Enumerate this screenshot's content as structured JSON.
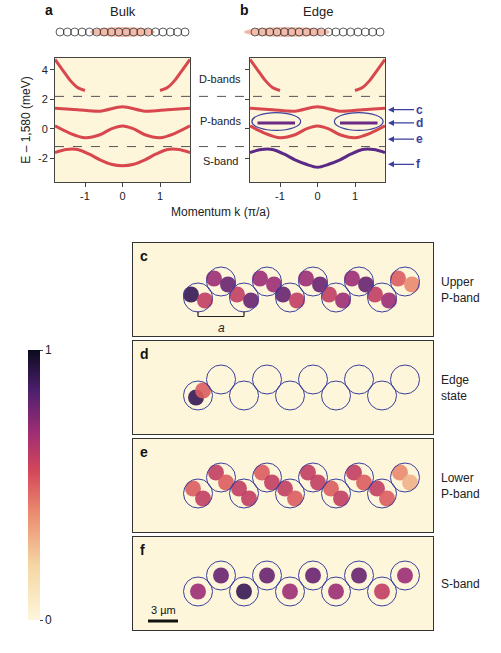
{
  "chart_data": [
    {
      "panel": "a",
      "type": "line",
      "title": "Bulk",
      "x_label": "Momentum k (π/a)",
      "y_label": "E – 1,580 (meV)",
      "xlim": [
        -1.8,
        1.8
      ],
      "ylim": [
        -3.6,
        4.8
      ],
      "xticks": [
        -1,
        0,
        1
      ],
      "yticks": [
        -2,
        0,
        2,
        4
      ],
      "dividers": [
        2.2,
        -1.2
      ],
      "band_labels": [
        {
          "text": "D-bands",
          "y": 3.4
        },
        {
          "text": "P-bands",
          "y": 0.5
        },
        {
          "text": "S-band",
          "y": -2.2
        }
      ],
      "series": [
        {
          "color": "#d8474d",
          "x": [
            -1.8,
            -1.6,
            -1.4,
            -1.2,
            -1.0,
            0,
            1.0,
            1.2,
            1.4,
            1.6,
            1.8
          ],
          "values": [
            4.7,
            4.0,
            3.3,
            2.8,
            2.6,
            null,
            2.6,
            2.8,
            3.3,
            4.0,
            4.7
          ]
        },
        {
          "color": "#d8474d",
          "x": [
            -1.8,
            -1.2,
            -0.6,
            0,
            0.6,
            1.2,
            1.8
          ],
          "values": [
            1.4,
            1.3,
            1.2,
            1.5,
            1.2,
            1.3,
            1.4
          ]
        },
        {
          "color": "#d8474d",
          "x": [
            -1.8,
            -1.4,
            -1.0,
            -0.6,
            -0.3,
            0,
            0.3,
            0.6,
            1.0,
            1.4,
            1.8
          ],
          "values": [
            0.2,
            -0.3,
            -0.6,
            -0.4,
            0.0,
            0.2,
            0.0,
            -0.4,
            -0.6,
            -0.3,
            0.2
          ]
        },
        {
          "color": "#d8474d",
          "x": [
            -1.8,
            -1.5,
            -1.2,
            -0.9,
            -0.6,
            -0.3,
            0,
            0.3,
            0.6,
            0.9,
            1.2,
            1.5,
            1.8
          ],
          "values": [
            -1.6,
            -1.4,
            -1.4,
            -1.7,
            -2.1,
            -2.4,
            -2.5,
            -2.4,
            -2.1,
            -1.7,
            -1.4,
            -1.4,
            -1.6
          ]
        }
      ]
    },
    {
      "panel": "b",
      "type": "line",
      "title": "Edge",
      "xlim": [
        -1.8,
        1.8
      ],
      "ylim": [
        -3.6,
        4.8
      ],
      "xticks": [
        -1,
        0,
        1
      ],
      "yticks": [
        -2,
        0,
        2,
        4
      ],
      "tick_labels": "x",
      "arrows": [
        {
          "label": "c",
          "y": 1.3
        },
        {
          "label": "d",
          "y": 0.4
        },
        {
          "label": "e",
          "y": -0.7
        },
        {
          "label": "f",
          "y": -2.4
        }
      ],
      "highlights": [
        {
          "x": [
            -1.75,
            -0.45
          ],
          "y": [
            -0.1,
            1.1
          ]
        },
        {
          "x": [
            0.45,
            1.75
          ],
          "y": [
            -0.1,
            1.1
          ]
        }
      ],
      "series": [
        {
          "color": "#d8474d",
          "x": [
            -1.8,
            -1.6,
            -1.4,
            -1.2,
            -1.0,
            0,
            1.0,
            1.2,
            1.4,
            1.6,
            1.8
          ],
          "values": [
            4.7,
            4.0,
            3.3,
            2.8,
            2.6,
            null,
            2.6,
            2.8,
            3.3,
            4.0,
            4.7
          ]
        },
        {
          "color": "#d8474d",
          "x": [
            -1.8,
            -1.2,
            -0.6,
            0,
            0.6,
            1.2,
            1.8
          ],
          "values": [
            1.4,
            1.3,
            1.2,
            1.5,
            1.2,
            1.3,
            1.4
          ]
        },
        {
          "color": "#6a2a86",
          "x": [
            -1.6,
            -1.1,
            -0.6,
            0,
            0.6,
            1.1,
            1.6
          ],
          "values": [
            0.4,
            0.4,
            0.4,
            null,
            0.4,
            0.4,
            0.4
          ]
        },
        {
          "color": "#d8474d",
          "x": [
            -1.8,
            -1.4,
            -1.0,
            -0.6,
            -0.3,
            0,
            0.3,
            0.6,
            1.0,
            1.4,
            1.8
          ],
          "values": [
            0.2,
            -0.3,
            -0.6,
            -0.4,
            0.0,
            0.2,
            0.0,
            -0.4,
            -0.6,
            -0.3,
            0.2
          ]
        },
        {
          "color": "#5b2a86",
          "x": [
            -1.8,
            -1.5,
            -1.2,
            -0.9,
            -0.6,
            -0.3,
            0,
            0.3,
            0.6,
            0.9,
            1.2,
            1.5,
            1.8
          ],
          "values": [
            -1.6,
            -1.4,
            -1.4,
            -1.7,
            -2.1,
            -2.4,
            -2.6,
            -2.4,
            -2.1,
            -1.7,
            -1.4,
            -1.4,
            -1.6
          ]
        }
      ]
    },
    {
      "panel": "c",
      "type": "scatter",
      "label": "Upper P-band",
      "tick_labels": false,
      "xlim": [
        -6.5,
        23.5
      ],
      "ylim": [
        -4.65,
        4.65
      ],
      "colorbar": {
        "range": [
          0,
          1
        ],
        "ticks": [
          0,
          1
        ]
      },
      "lattice": {
        "label": "a",
        "x": [
          0,
          4.6
        ],
        "y": -2.7
      },
      "pillars": {
        "x": [
          0,
          2.3,
          4.6,
          6.9,
          9.2,
          11.5,
          13.8,
          16.1,
          18.4,
          20.7
        ],
        "y": [
          -0.8,
          0.8,
          -0.8,
          0.8,
          -0.8,
          0.8,
          -0.8,
          0.8,
          -0.8,
          0.8
        ]
      },
      "blobs": {
        "x": [
          -0.7,
          0.7,
          1.6,
          3.0,
          3.9,
          5.3,
          6.2,
          7.6,
          8.5,
          9.9,
          10.8,
          12.2,
          13.1,
          14.5,
          15.4,
          16.8,
          17.7,
          19.1,
          20.0,
          21.4
        ],
        "y": [
          -0.5,
          -1.1,
          1.1,
          0.5,
          -0.5,
          -1.1,
          1.1,
          0.5,
          -0.5,
          -1.1,
          1.1,
          0.5,
          -0.5,
          -1.1,
          1.1,
          0.5,
          -0.5,
          -1.1,
          1.1,
          0.5
        ],
        "values": [
          0.9,
          0.6,
          0.7,
          0.8,
          0.6,
          0.8,
          0.7,
          0.7,
          0.8,
          0.6,
          0.7,
          0.8,
          0.6,
          0.7,
          0.7,
          0.8,
          0.6,
          0.7,
          0.5,
          0.4
        ]
      }
    },
    {
      "panel": "d",
      "type": "scatter",
      "label": "Edge state",
      "tick_labels": false,
      "xlim": [
        -6.5,
        23.5
      ],
      "ylim": [
        -4.65,
        4.65
      ],
      "pillars": {
        "x": [
          0,
          2.3,
          4.6,
          6.9,
          9.2,
          11.5,
          13.8,
          16.1,
          18.4,
          20.7
        ],
        "y": [
          -0.8,
          0.8,
          -0.8,
          0.8,
          -0.8,
          0.8,
          -0.8,
          0.8,
          -0.8,
          0.8
        ]
      },
      "blobs": {
        "x": [
          -0.2,
          0.5
        ],
        "y": [
          -1.0,
          -0.3
        ],
        "values": [
          0.9,
          0.5
        ]
      }
    },
    {
      "panel": "e",
      "type": "scatter",
      "label": "Lower P-band",
      "tick_labels": false,
      "xlim": [
        -6.5,
        23.5
      ],
      "ylim": [
        -4.65,
        4.65
      ],
      "pillars": {
        "x": [
          0,
          2.3,
          4.6,
          6.9,
          9.2,
          11.5,
          13.8,
          16.1,
          18.4,
          20.7
        ],
        "y": [
          -0.8,
          0.8,
          -0.8,
          0.8,
          -0.8,
          0.8,
          -0.8,
          0.8,
          -0.8,
          0.8
        ]
      },
      "blobs": {
        "x": [
          -0.5,
          0.5,
          1.8,
          2.8,
          4.1,
          5.1,
          6.4,
          7.4,
          8.7,
          9.7,
          11.0,
          12.0,
          13.3,
          14.3,
          15.6,
          16.6,
          17.9,
          18.9,
          20.2,
          21.2
        ],
        "y": [
          -0.3,
          -1.3,
          1.3,
          0.3,
          -0.3,
          -1.3,
          1.3,
          0.3,
          -0.3,
          -1.3,
          1.3,
          0.3,
          -0.3,
          -1.3,
          1.3,
          0.3,
          -0.3,
          -1.3,
          1.3,
          0.3
        ],
        "values": [
          0.5,
          0.6,
          0.6,
          0.5,
          0.6,
          0.6,
          0.5,
          0.6,
          0.6,
          0.5,
          0.6,
          0.6,
          0.5,
          0.6,
          0.6,
          0.5,
          0.6,
          0.5,
          0.4,
          0.3
        ]
      }
    },
    {
      "panel": "f",
      "type": "scatter",
      "label": "S-band",
      "tick_labels": false,
      "xlim": [
        -6.5,
        23.5
      ],
      "ylim": [
        -4.65,
        4.65
      ],
      "scale_bar": {
        "label": "3 µm",
        "length": 3
      },
      "pillars": {
        "x": [
          0,
          2.3,
          4.6,
          6.9,
          9.2,
          11.5,
          13.8,
          16.1,
          18.4,
          20.7
        ],
        "y": [
          -0.8,
          0.8,
          -0.8,
          0.8,
          -0.8,
          0.8,
          -0.8,
          0.8,
          -0.8,
          0.8
        ]
      },
      "blobs": {
        "x": [
          0,
          2.3,
          4.6,
          6.9,
          9.2,
          11.5,
          13.8,
          16.1,
          18.4,
          20.7
        ],
        "y": [
          -0.8,
          0.8,
          -0.8,
          0.8,
          -0.8,
          0.8,
          -0.8,
          0.8,
          -0.8,
          0.8
        ],
        "values": [
          0.7,
          0.8,
          0.9,
          0.8,
          0.7,
          0.8,
          0.7,
          0.8,
          0.6,
          0.7
        ]
      }
    }
  ]
}
